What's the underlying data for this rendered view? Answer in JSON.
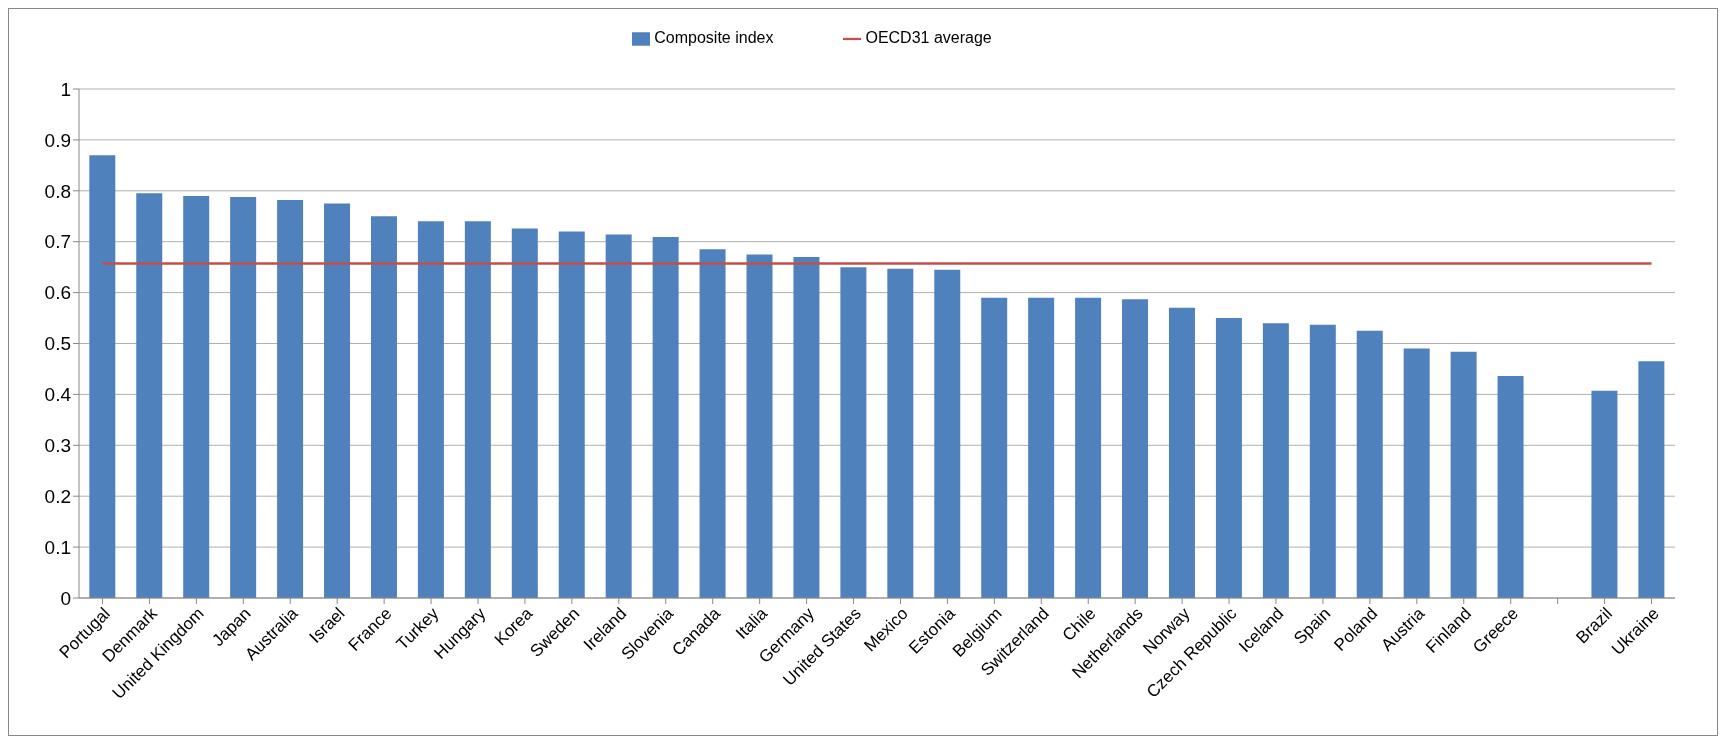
{
  "chart_data": {
    "type": "bar",
    "categories": [
      "Portugal",
      "Denmark",
      "United Kingdom",
      "Japan",
      "Australia",
      "Israel",
      "France",
      "Turkey",
      "Hungary",
      "Korea",
      "Sweden",
      "Ireland",
      "Slovenia",
      "Canada",
      "Italia",
      "Germany",
      "United States",
      "Mexico",
      "Estonia",
      "Belgium",
      "Switzerland",
      "Chile",
      "Netherlands",
      "Norway",
      "Czech Republic",
      "Iceland",
      "Spain",
      "Poland",
      "Austria",
      "Finland",
      "Greece",
      null,
      "Brazil",
      "Ukraine"
    ],
    "series": [
      {
        "name": "Composite index",
        "color": "#4f81bd",
        "values": [
          0.87,
          0.795,
          0.79,
          0.788,
          0.782,
          0.775,
          0.75,
          0.74,
          0.74,
          0.726,
          0.72,
          0.714,
          0.709,
          0.685,
          0.675,
          0.67,
          0.65,
          0.647,
          0.645,
          0.59,
          0.59,
          0.59,
          0.587,
          0.57,
          0.55,
          0.54,
          0.537,
          0.525,
          0.49,
          0.484,
          0.436,
          null,
          0.407,
          0.465
        ]
      },
      {
        "name": "OECD31 average",
        "type": "line",
        "color": "#c0504d",
        "values": [
          0.657,
          0.657,
          0.657,
          0.657,
          0.657,
          0.657,
          0.657,
          0.657,
          0.657,
          0.657,
          0.657,
          0.657,
          0.657,
          0.657,
          0.657,
          0.657,
          0.657,
          0.657,
          0.657,
          0.657,
          0.657,
          0.657,
          0.657,
          0.657,
          0.657,
          0.657,
          0.657,
          0.657,
          0.657,
          0.657,
          0.657,
          0.657,
          0.657,
          0.657
        ]
      }
    ],
    "ylim": [
      0,
      1
    ],
    "yticks": [
      0,
      0.1,
      0.2,
      0.3,
      0.4,
      0.5,
      0.6,
      0.7,
      0.8,
      0.9,
      1
    ],
    "grid": "y",
    "legend": "top",
    "marker": "none",
    "line_style": "solid"
  }
}
